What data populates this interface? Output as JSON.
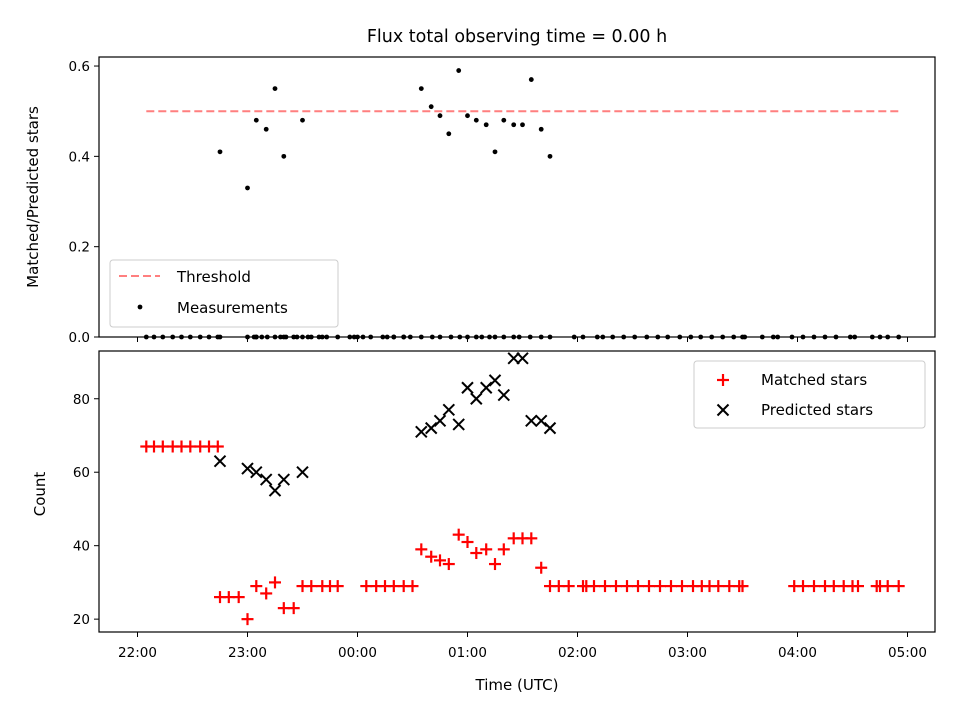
{
  "chart_data": [
    {
      "type": "scatter",
      "title": "Flux total observing time = 0.00 h",
      "xlabel": "",
      "ylabel": "Matched/Predicted stars",
      "x_range_hours": [
        21.65,
        29.25
      ],
      "ylim": [
        0,
        0.62
      ],
      "yticks": [
        "0.0",
        "0.2",
        "0.4",
        "0.6"
      ],
      "ytick_values": [
        0,
        0.2,
        0.4,
        0.6
      ],
      "legend": {
        "location": "lower-left",
        "entries": [
          "Threshold",
          "Measurements"
        ]
      },
      "threshold": {
        "name": "Threshold",
        "value": 0.5,
        "x_from": 22.08,
        "x_to": 28.92,
        "color": "#ff7f7f",
        "style": "dashed"
      },
      "series": [
        {
          "name": "Measurements",
          "color": "#000000",
          "marker": "dot",
          "x": [
            22.08,
            22.15,
            22.23,
            22.32,
            22.4,
            22.48,
            22.57,
            22.65,
            22.73,
            22.75,
            23.0,
            23.06,
            23.08,
            23.13,
            23.25,
            23.33,
            23.45,
            23.58,
            23.68,
            23.82,
            23.93,
            24.0,
            24.12,
            24.27,
            24.33,
            24.42,
            24.48,
            24.58,
            24.68,
            24.75,
            24.85,
            24.93,
            25.0,
            25.08,
            25.13,
            25.2,
            25.25,
            25.33,
            25.42,
            25.47,
            25.57,
            25.67,
            25.75,
            25.97,
            26.05,
            26.18,
            26.23,
            26.32,
            26.42,
            26.52,
            26.63,
            26.73,
            26.82,
            26.93,
            27.03,
            27.12,
            27.22,
            27.32,
            27.42,
            27.5,
            27.52,
            27.68,
            27.78,
            27.82,
            27.95,
            28.05,
            28.15,
            28.25,
            28.35,
            28.48,
            28.52,
            28.68,
            28.75,
            28.82,
            28.92,
            23.08,
            23.18,
            23.3,
            23.35,
            23.42,
            23.5,
            23.55,
            23.65,
            23.72,
            23.97,
            24.05,
            24.23,
            24.33,
            24.42
          ],
          "y": [
            0.0,
            0.0,
            0.0,
            0.0,
            0.0,
            0.0,
            0.0,
            0.0,
            0.0,
            0.0,
            0.0,
            0.0,
            0.0,
            0.0,
            0.0,
            0.0,
            0.0,
            0.0,
            0.0,
            0.0,
            0.0,
            0.0,
            0.0,
            0.0,
            0.0,
            0.0,
            0.0,
            0.0,
            0.0,
            0.0,
            0.0,
            0.0,
            0.0,
            0.0,
            0.0,
            0.0,
            0.0,
            0.0,
            0.0,
            0.0,
            0.0,
            0.0,
            0.0,
            0.0,
            0.0,
            0.0,
            0.0,
            0.0,
            0.0,
            0.0,
            0.0,
            0.0,
            0.0,
            0.0,
            0.0,
            0.0,
            0.0,
            0.0,
            0.0,
            0.0,
            0.0,
            0.0,
            0.0,
            0.0,
            0.0,
            0.0,
            0.0,
            0.0,
            0.0,
            0.0,
            0.0,
            0.0,
            0.0,
            0.0,
            0.0,
            0.0,
            0.0,
            0.0,
            0.0,
            0.0,
            0.0,
            0.0,
            0.0,
            0.0,
            0.0,
            0.0,
            0.0,
            0.0,
            0.0
          ]
        },
        {
          "name": "Measurements",
          "color": "#000000",
          "marker": "dot",
          "x": [
            22.75,
            23.0,
            23.08,
            23.17,
            23.25,
            23.33,
            23.5,
            24.58,
            24.67,
            24.75,
            24.83,
            24.92,
            25.0,
            25.08,
            25.17,
            25.25,
            25.33,
            25.42,
            25.5,
            25.58,
            25.67,
            25.75
          ],
          "y": [
            0.41,
            0.33,
            0.48,
            0.46,
            0.55,
            0.4,
            0.48,
            0.55,
            0.51,
            0.49,
            0.45,
            0.59,
            0.49,
            0.48,
            0.47,
            0.41,
            0.48,
            0.47,
            0.47,
            0.57,
            0.46,
            0.4
          ]
        }
      ]
    },
    {
      "type": "scatter",
      "title": "",
      "xlabel": "Time (UTC)",
      "ylabel": "Count",
      "x_range_hours": [
        21.65,
        29.25
      ],
      "ylim": [
        16.5,
        93
      ],
      "yticks": [
        "20",
        "40",
        "60",
        "80"
      ],
      "ytick_values": [
        20,
        40,
        60,
        80
      ],
      "xticks": [
        "22:00",
        "23:00",
        "00:00",
        "01:00",
        "02:00",
        "03:00",
        "04:00",
        "05:00"
      ],
      "xtick_hours": [
        22,
        23,
        24,
        25,
        26,
        27,
        28,
        29
      ],
      "legend": {
        "location": "top-right",
        "entries": [
          "Matched stars",
          "Predicted stars"
        ]
      },
      "series": [
        {
          "name": "Matched stars",
          "color": "#ff0000",
          "marker": "plus",
          "x": [
            22.08,
            22.15,
            22.23,
            22.32,
            22.4,
            22.48,
            22.57,
            22.65,
            22.73,
            22.75,
            22.83,
            22.92,
            23.0,
            23.08,
            23.17,
            23.25,
            23.33,
            23.42,
            23.5,
            23.58,
            23.68,
            23.75,
            23.82,
            24.08,
            24.17,
            24.25,
            24.33,
            24.42,
            24.5,
            24.58,
            24.67,
            24.75,
            24.83,
            24.92,
            25.0,
            25.08,
            25.17,
            25.25,
            25.33,
            25.42,
            25.5,
            25.58,
            25.67,
            25.75,
            25.83,
            25.92,
            26.05,
            26.08,
            26.15,
            26.25,
            26.35,
            26.45,
            26.55,
            26.65,
            26.75,
            26.85,
            26.95,
            27.05,
            27.13,
            27.2,
            27.28,
            27.38,
            27.47,
            27.5,
            27.97,
            28.05,
            28.15,
            28.25,
            28.33,
            28.42,
            28.5,
            28.55,
            28.72,
            28.75,
            28.82,
            28.92
          ],
          "y": [
            67,
            67,
            67,
            67,
            67,
            67,
            67,
            67,
            67,
            26,
            26,
            26,
            20,
            29,
            27,
            30,
            23,
            23,
            29,
            29,
            29,
            29,
            29,
            29,
            29,
            29,
            29,
            29,
            29,
            39,
            37,
            36,
            35,
            43,
            41,
            38,
            39,
            35,
            39,
            42,
            42,
            42,
            34,
            29,
            29,
            29,
            29,
            29,
            29,
            29,
            29,
            29,
            29,
            29,
            29,
            29,
            29,
            29,
            29,
            29,
            29,
            29,
            29,
            29,
            29,
            29,
            29,
            29,
            29,
            29,
            29,
            29,
            29,
            29,
            29,
            29
          ]
        },
        {
          "name": "Predicted stars",
          "color": "#000000",
          "marker": "x",
          "x": [
            22.75,
            23.0,
            23.08,
            23.17,
            23.25,
            23.33,
            23.5,
            24.58,
            24.67,
            24.75,
            24.83,
            24.92,
            25.0,
            25.08,
            25.17,
            25.25,
            25.33,
            25.42,
            25.5,
            25.58,
            25.67,
            25.75
          ],
          "y": [
            63,
            61,
            60,
            58,
            55,
            58,
            60,
            71,
            72,
            74,
            77,
            73,
            83,
            80,
            83,
            85,
            81,
            91,
            91,
            74,
            74,
            72
          ]
        }
      ]
    }
  ]
}
